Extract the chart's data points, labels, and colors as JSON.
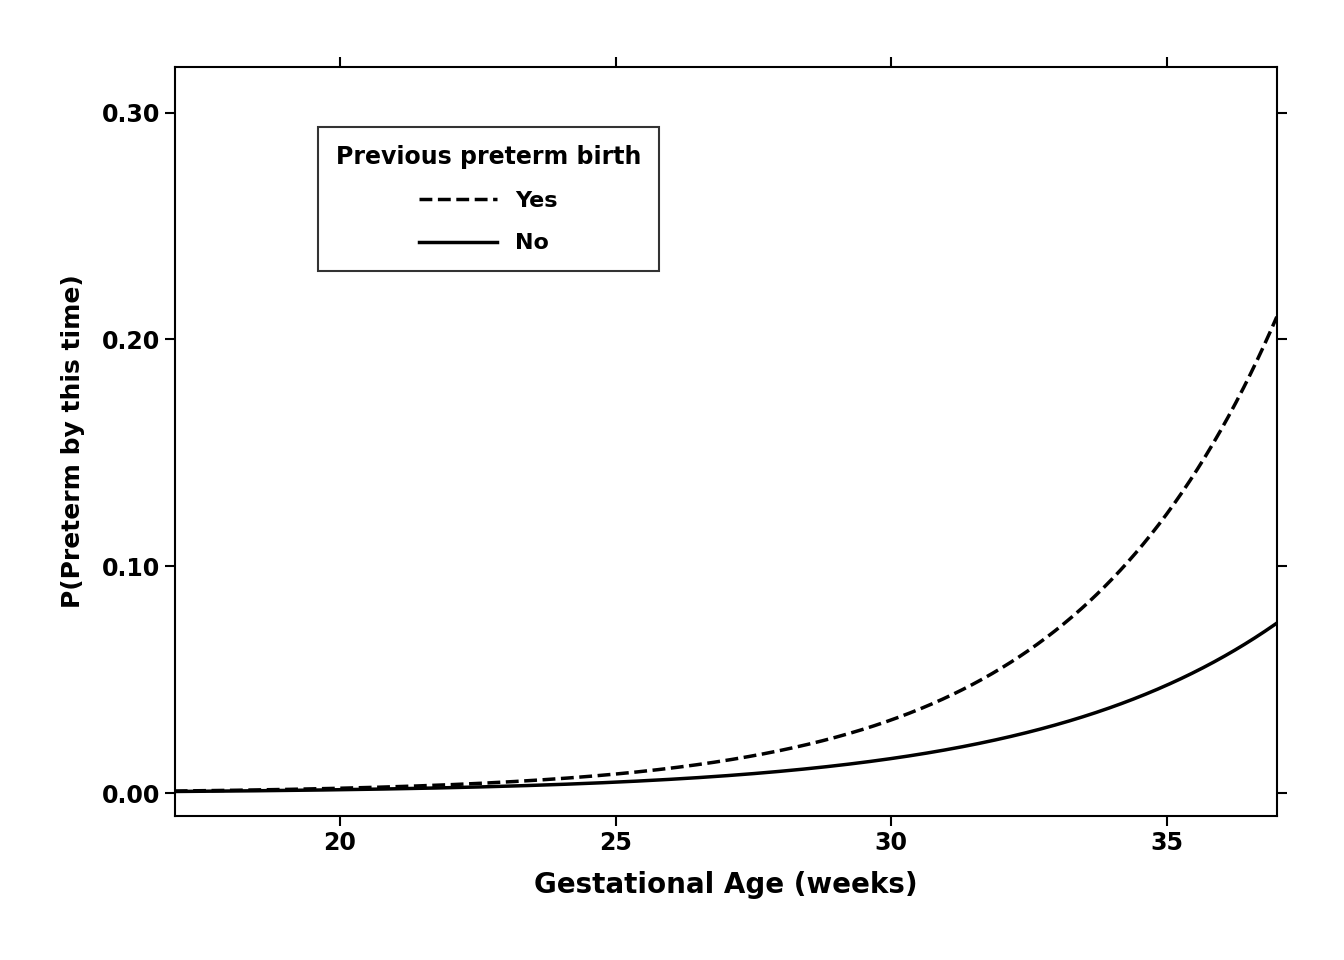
{
  "title": "",
  "xlabel": "Gestational Age (weeks)",
  "ylabel": "P(Preterm by this time)",
  "x_min": 17,
  "x_max": 37,
  "y_min": -0.01,
  "y_max": 0.32,
  "x_ticks": [
    20,
    25,
    30,
    35
  ],
  "y_ticks": [
    0.0,
    0.1,
    0.2,
    0.3
  ],
  "legend_title": "Previous preterm birth",
  "legend_labels": [
    "Yes",
    "No"
  ],
  "line_color": "#000000",
  "background_color": "#ffffff",
  "a_yes": 1.089e-05,
  "b_yes": 0.2659,
  "a_no": 2.5e-06,
  "b_no": 0.2263,
  "xlabel_fontsize": 20,
  "ylabel_fontsize": 18,
  "tick_fontsize": 17,
  "legend_fontsize": 16,
  "legend_title_fontsize": 17
}
